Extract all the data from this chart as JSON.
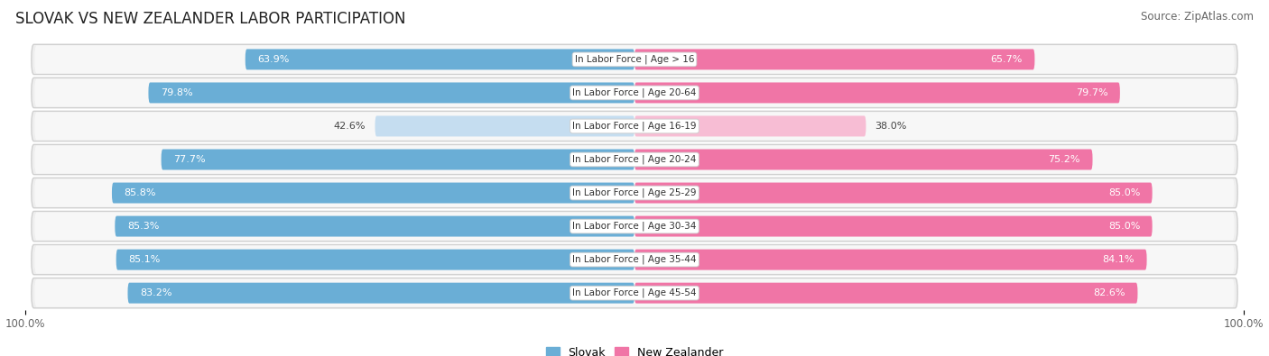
{
  "title": "SLOVAK VS NEW ZEALANDER LABOR PARTICIPATION",
  "source": "Source: ZipAtlas.com",
  "categories": [
    "In Labor Force | Age > 16",
    "In Labor Force | Age 20-64",
    "In Labor Force | Age 16-19",
    "In Labor Force | Age 20-24",
    "In Labor Force | Age 25-29",
    "In Labor Force | Age 30-34",
    "In Labor Force | Age 35-44",
    "In Labor Force | Age 45-54"
  ],
  "slovak_values": [
    63.9,
    79.8,
    42.6,
    77.7,
    85.8,
    85.3,
    85.1,
    83.2
  ],
  "nz_values": [
    65.7,
    79.7,
    38.0,
    75.2,
    85.0,
    85.0,
    84.1,
    82.6
  ],
  "slovak_color": "#6aaed6",
  "slovak_color_light": "#c5ddf0",
  "nz_color": "#f075a6",
  "nz_color_light": "#f7bdd4",
  "row_bg_color": "#e8e8e8",
  "row_inner_bg": "#f5f5f5",
  "label_bg_color": "#ffffff",
  "max_value": 100.0,
  "bar_height": 0.62,
  "title_fontsize": 12,
  "source_fontsize": 8.5,
  "label_fontsize": 7.5,
  "value_fontsize": 8
}
